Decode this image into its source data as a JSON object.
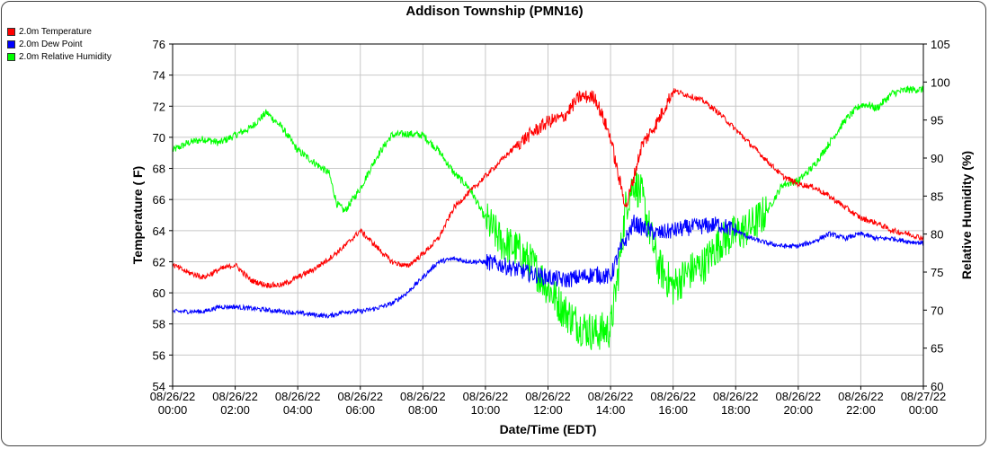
{
  "title": "Addison Township (PMN16)",
  "colors": {
    "temperature": "#ff0000",
    "dew_point": "#0000ff",
    "relative_humidity": "#00ff00",
    "grid": "#c8c8c8",
    "axis": "#000000"
  },
  "legend": [
    {
      "label": "2.0m Temperature",
      "color": "#ff0000"
    },
    {
      "label": "2.0m Dew Point",
      "color": "#0000ff"
    },
    {
      "label": "2.0m Relative Humidity",
      "color": "#00ff00"
    }
  ],
  "chart_data": {
    "type": "line",
    "title": "Addison Township (PMN16)",
    "xlabel": "Date/Time (EDT)",
    "ylabel_left": "Temperature ( F)",
    "ylabel_right": "Relative Humidity (%)",
    "xlim": [
      0,
      24
    ],
    "ylim_left": [
      54,
      76
    ],
    "ylim_right": [
      60,
      105
    ],
    "grid": true,
    "legend_position": "top-left",
    "x_tick_labels": [
      [
        "08/26/22",
        "00:00"
      ],
      [
        "08/26/22",
        "02:00"
      ],
      [
        "08/26/22",
        "04:00"
      ],
      [
        "08/26/22",
        "06:00"
      ],
      [
        "08/26/22",
        "08:00"
      ],
      [
        "08/26/22",
        "10:00"
      ],
      [
        "08/26/22",
        "12:00"
      ],
      [
        "08/26/22",
        "14:00"
      ],
      [
        "08/26/22",
        "16:00"
      ],
      [
        "08/26/22",
        "18:00"
      ],
      [
        "08/26/22",
        "20:00"
      ],
      [
        "08/26/22",
        "22:00"
      ],
      [
        "08/27/22",
        "00:00"
      ]
    ],
    "y_left_ticks": [
      54,
      56,
      58,
      60,
      62,
      64,
      66,
      68,
      70,
      72,
      74,
      76
    ],
    "y_right_ticks": [
      60,
      65,
      70,
      75,
      80,
      85,
      90,
      95,
      100,
      105
    ],
    "x_unit": "hours since 08/26/22 00:00",
    "series": [
      {
        "name": "2.0m Temperature",
        "axis": "left",
        "color": "#ff0000",
        "x": [
          0,
          0.5,
          1,
          1.5,
          2,
          2.5,
          3,
          3.5,
          4,
          4.5,
          5,
          5.5,
          6,
          6.5,
          7,
          7.5,
          8,
          8.5,
          9,
          9.5,
          10,
          10.5,
          11,
          11.5,
          12,
          12.5,
          13,
          13.5,
          14,
          14.25,
          14.5,
          14.75,
          15,
          15.5,
          16,
          16.5,
          17,
          17.5,
          18,
          18.5,
          19,
          19.5,
          20,
          20.5,
          21,
          21.5,
          22,
          22.5,
          23,
          23.5,
          24
        ],
        "y": [
          61.8,
          61.3,
          61.0,
          61.5,
          61.8,
          60.8,
          60.5,
          60.5,
          61.0,
          61.5,
          62.2,
          63.0,
          64.0,
          63.0,
          62.0,
          61.7,
          62.5,
          63.5,
          65.5,
          66.5,
          67.5,
          68.5,
          69.5,
          70.3,
          71.0,
          71.3,
          72.6,
          72.6,
          70.0,
          67.5,
          65.5,
          67.5,
          69.5,
          71.0,
          73.0,
          72.7,
          72.3,
          71.5,
          70.5,
          69.5,
          68.5,
          67.5,
          67.0,
          66.8,
          66.2,
          65.5,
          64.8,
          64.5,
          64.0,
          63.8,
          63.5
        ]
      },
      {
        "name": "2.0m Dew Point",
        "axis": "left",
        "color": "#0000ff",
        "x": [
          0,
          0.5,
          1,
          1.5,
          2,
          2.5,
          3,
          3.5,
          4,
          4.5,
          5,
          5.5,
          6,
          6.5,
          7,
          7.5,
          8,
          8.5,
          9,
          9.5,
          10,
          10.5,
          11,
          11.5,
          12,
          12.5,
          13,
          13.5,
          14,
          14.25,
          14.5,
          14.75,
          15,
          15.5,
          16,
          16.5,
          17,
          17.5,
          18,
          18.5,
          19,
          19.5,
          20,
          20.5,
          21,
          21.5,
          22,
          22.5,
          23,
          23.5,
          24
        ],
        "y": [
          58.8,
          58.8,
          58.8,
          59.1,
          59.1,
          59.0,
          58.9,
          58.8,
          58.7,
          58.6,
          58.5,
          58.8,
          58.8,
          59.0,
          59.3,
          60.0,
          61.0,
          62.0,
          62.2,
          62.0,
          62.0,
          61.8,
          61.5,
          61.2,
          61.0,
          60.8,
          61.0,
          61.2,
          61.0,
          62.5,
          63.5,
          64.5,
          64.2,
          63.8,
          64.0,
          64.2,
          64.3,
          64.4,
          64.0,
          63.5,
          63.2,
          63.0,
          63.0,
          63.3,
          63.8,
          63.5,
          63.8,
          63.5,
          63.5,
          63.3,
          63.2
        ]
      },
      {
        "name": "2.0m Relative Humidity",
        "axis": "right",
        "color": "#00ff00",
        "x": [
          0,
          0.5,
          1,
          1.5,
          2,
          2.5,
          3,
          3.5,
          4,
          4.5,
          5,
          5.25,
          5.5,
          6,
          6.5,
          7,
          7.5,
          8,
          8.5,
          9,
          9.5,
          10,
          10.5,
          11,
          11.5,
          12,
          12.5,
          13,
          13.5,
          14,
          14.25,
          14.5,
          14.75,
          15,
          15.5,
          16,
          16.5,
          17,
          17.5,
          18,
          18.5,
          19,
          19.5,
          20,
          20.5,
          21,
          21.5,
          22,
          22.25,
          22.5,
          23,
          23.5,
          24
        ],
        "y": [
          91,
          92,
          92.5,
          92,
          93,
          94,
          96,
          94,
          91,
          89.5,
          88,
          84,
          83,
          86,
          90,
          93,
          93.2,
          93,
          91,
          88,
          86,
          82,
          79,
          78,
          76,
          73,
          70,
          68,
          67,
          67.5,
          75,
          84,
          87,
          85,
          76,
          73,
          75,
          76,
          79,
          80,
          81,
          83,
          86.5,
          87,
          89,
          92,
          95,
          97,
          97,
          96.5,
          98.5,
          99,
          99
        ]
      }
    ]
  },
  "x_axis_title": "Date/Time (EDT)",
  "y_left_title": "Temperature ( F)",
  "y_right_title": "Relative Humidity (%)"
}
